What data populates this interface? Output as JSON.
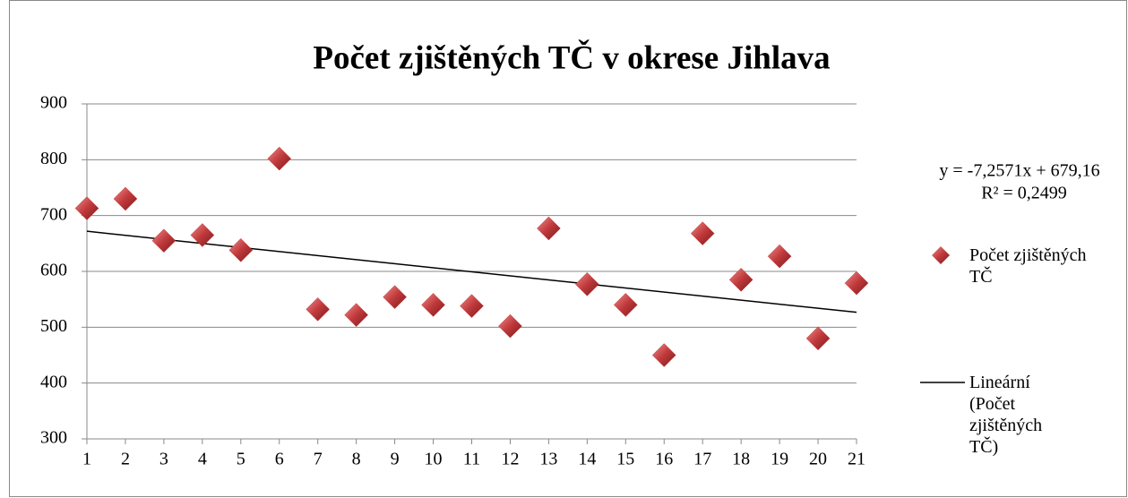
{
  "chart_data": {
    "type": "scatter",
    "title": "Počet zjištěných TČ v okrese Jihlava",
    "x": [
      1,
      2,
      3,
      4,
      5,
      6,
      7,
      8,
      9,
      10,
      11,
      12,
      13,
      14,
      15,
      16,
      17,
      18,
      19,
      20,
      21
    ],
    "series": [
      {
        "name": "Počet zjištěných TČ",
        "color": "#c0393b",
        "values": [
          713,
          730,
          655,
          665,
          638,
          802,
          532,
          522,
          554,
          540,
          538,
          502,
          677,
          577,
          540,
          450,
          668,
          585,
          627,
          480,
          579
        ]
      }
    ],
    "trendline": {
      "name": "Lineární (Počet zjištěných TČ)",
      "slope": -7.2571,
      "intercept": 679.16,
      "color": "#000000",
      "equation": "y = -7,2571x + 679,16",
      "r2": "R² = 0,2499"
    },
    "xlim": [
      1,
      21
    ],
    "xticks": [
      1,
      2,
      3,
      4,
      5,
      6,
      7,
      8,
      9,
      10,
      11,
      12,
      13,
      14,
      15,
      16,
      17,
      18,
      19,
      20,
      21
    ],
    "ylim": [
      300,
      900
    ],
    "yticks": [
      300,
      400,
      500,
      600,
      700,
      800,
      900
    ],
    "grid": true
  }
}
